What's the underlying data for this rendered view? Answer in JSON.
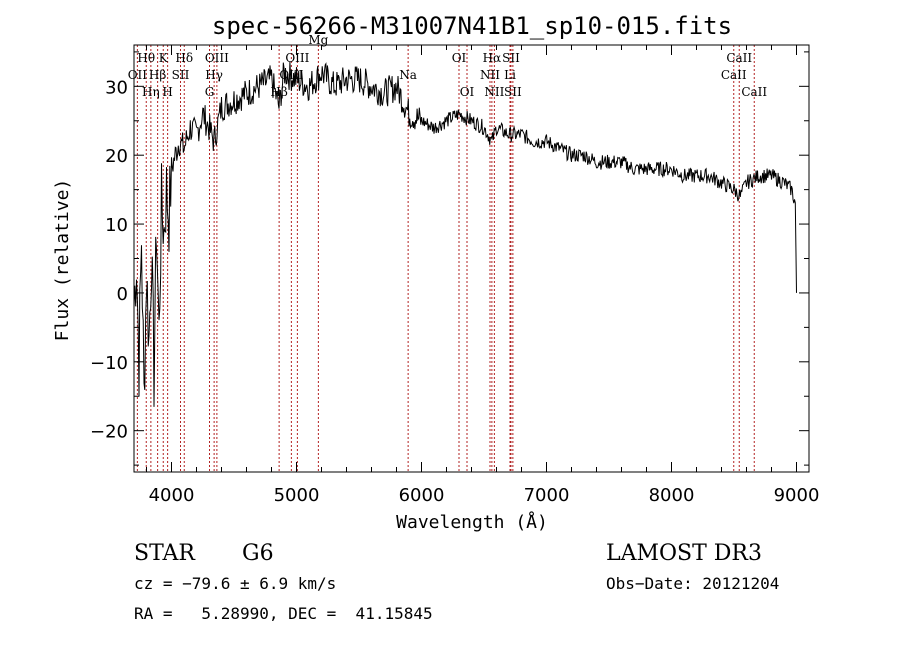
{
  "chart_data": {
    "type": "line",
    "title": "spec-56266-M31007N41B1_sp10-015.fits",
    "xlabel": "Wavelength (Å)",
    "ylabel": "Flux (relative)",
    "xlim": [
      3700,
      9100
    ],
    "ylim": [
      -26,
      36
    ],
    "xticks": [
      4000,
      5000,
      6000,
      7000,
      8000,
      9000
    ],
    "yticks": [
      -20,
      -10,
      0,
      10,
      20,
      30
    ],
    "tick_labels_x": [
      "4000",
      "5000",
      "6000",
      "7000",
      "8000",
      "9000"
    ],
    "tick_labels_y": [
      "−20",
      "−10",
      "0",
      "10",
      "20",
      "30"
    ],
    "series": [
      {
        "name": "spectrum",
        "x": [
          3700,
          3720,
          3740,
          3760,
          3780,
          3800,
          3820,
          3840,
          3860,
          3880,
          3900,
          3920,
          3940,
          3960,
          3980,
          4000,
          4030,
          4060,
          4100,
          4150,
          4200,
          4250,
          4300,
          4340,
          4400,
          4500,
          4600,
          4700,
          4800,
          4860,
          4900,
          5000,
          5100,
          5200,
          5300,
          5400,
          5500,
          5600,
          5700,
          5800,
          5900,
          6000,
          6100,
          6200,
          6300,
          6400,
          6500,
          6563,
          6600,
          6700,
          6800,
          6900,
          7000,
          7100,
          7200,
          7300,
          7400,
          7500,
          7600,
          7700,
          7800,
          7900,
          8000,
          8100,
          8200,
          8300,
          8400,
          8500,
          8550,
          8600,
          8700,
          8800,
          8900,
          8960,
          8990,
          9000
        ],
        "values": [
          -2,
          5,
          -10,
          8,
          -15,
          3,
          -7,
          6,
          -12,
          10,
          -6,
          13,
          9,
          15,
          11,
          18,
          20,
          22,
          21,
          24,
          23,
          26,
          24,
          22,
          27,
          28,
          29,
          30,
          31,
          27,
          32,
          31,
          30,
          32,
          30,
          31,
          31,
          30,
          29,
          30,
          26,
          25,
          24,
          25,
          26,
          25,
          24,
          22,
          24,
          23,
          23,
          22,
          22,
          21,
          20,
          20,
          19,
          19,
          19,
          18,
          18,
          18,
          18,
          17,
          17,
          17,
          16,
          15,
          14,
          16,
          17,
          17,
          16,
          15,
          13,
          0
        ]
      }
    ],
    "lines": [
      {
        "label": "OII",
        "wavelength": 3727,
        "row": 2
      },
      {
        "label": "Hθ",
        "wavelength": 3798,
        "row": 1
      },
      {
        "label": "Hη",
        "wavelength": 3835,
        "row": 3
      },
      {
        "label": "Hβ",
        "wavelength": 3889,
        "row": 2
      },
      {
        "label": "K",
        "wavelength": 3934,
        "row": 1
      },
      {
        "label": "H",
        "wavelength": 3969,
        "row": 3
      },
      {
        "label": "SII",
        "wavelength": 4072,
        "row": 2
      },
      {
        "label": "Hδ",
        "wavelength": 4102,
        "row": 1
      },
      {
        "label": "G",
        "wavelength": 4304,
        "row": 3
      },
      {
        "label": "Hγ",
        "wavelength": 4341,
        "row": 2
      },
      {
        "label": "OIII",
        "wavelength": 4363,
        "row": 1
      },
      {
        "label": "Hβ",
        "wavelength": 4861,
        "row": 3
      },
      {
        "label": "OIII",
        "wavelength": 4959,
        "row": 2
      },
      {
        "label": "OIII",
        "wavelength": 5007,
        "row": 1
      },
      {
        "label": "Mg",
        "wavelength": 5175,
        "row": 0
      },
      {
        "label": "Na",
        "wavelength": 5893,
        "row": 2
      },
      {
        "label": "OI",
        "wavelength": 6300,
        "row": 1
      },
      {
        "label": "OI",
        "wavelength": 6364,
        "row": 3
      },
      {
        "label": "NII",
        "wavelength": 6548,
        "row": 2
      },
      {
        "label": "Hα",
        "wavelength": 6563,
        "row": 1
      },
      {
        "label": "NII",
        "wavelength": 6583,
        "row": 3
      },
      {
        "label": "Li",
        "wavelength": 6708,
        "row": 2
      },
      {
        "label": "SII",
        "wavelength": 6716,
        "row": 1
      },
      {
        "label": "SII",
        "wavelength": 6731,
        "row": 3
      },
      {
        "label": "CaII",
        "wavelength": 8498,
        "row": 2
      },
      {
        "label": "CaII",
        "wavelength": 8542,
        "row": 1
      },
      {
        "label": "CaII",
        "wavelength": 8662,
        "row": 3
      }
    ],
    "line_color": "#b22222",
    "spectrum_color": "#000000"
  },
  "info": {
    "class_label": "STAR",
    "subclass": "G6",
    "survey": "LAMOST DR3",
    "velocity": "cz = −79.6 ± 6.9 km/s",
    "obs_date": "Obs−Date: 20121204",
    "coords": "RA =   5.28990, DEC =  41.15845"
  }
}
